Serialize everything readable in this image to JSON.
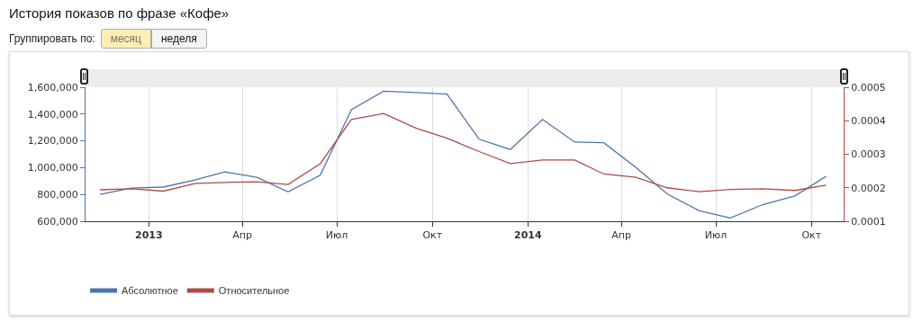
{
  "chart_data": {
    "type": "line",
    "title": "История показов по фразе «Кофе»",
    "annotations": [
      "Группировать по:",
      "месяц",
      "неделя"
    ],
    "x": [
      "2012-11-15",
      "2012-12-15",
      "2013-01-15",
      "2013-02-15",
      "2013-03-15",
      "2013-04-15",
      "2013-05-15",
      "2013-06-15",
      "2013-07-15",
      "2013-08-15",
      "2013-09-15",
      "2013-10-15",
      "2013-11-15",
      "2013-12-15",
      "2014-01-15",
      "2014-02-15",
      "2014-03-15",
      "2014-04-15",
      "2014-05-15",
      "2014-06-15",
      "2014-07-15",
      "2014-08-15",
      "2014-09-15",
      "2014-10-15"
    ],
    "series": [
      {
        "name": "Абсолютное",
        "color": "#4a76ad",
        "values": [
          800000,
          848000,
          855000,
          910000,
          968000,
          928000,
          820000,
          944000,
          1433000,
          1570000,
          1560000,
          1549000,
          1212000,
          1136000,
          1360000,
          1191000,
          1186000,
          1001000,
          805000,
          678000,
          625000,
          724000,
          789000,
          935000
        ]
      },
      {
        "name": "Относительное",
        "color": "#b04a48",
        "axis": "y2",
        "values": [
          0.000194,
          0.000197,
          0.00019,
          0.000213,
          0.000216,
          0.000218,
          0.00021,
          0.000272,
          0.000404,
          0.000422,
          0.000378,
          0.000348,
          0.000308,
          0.000272,
          0.000283,
          0.000283,
          0.000241,
          0.000231,
          0.0002,
          0.000188,
          0.000195,
          0.000197,
          0.000192,
          0.000208
        ]
      }
    ],
    "xlim": [
      "2012-11-01",
      "2014-11-01"
    ],
    "xticks": [
      {
        "value": "2013-01-01",
        "label": "2013"
      },
      {
        "value": "2013-04-01",
        "label": "Апр"
      },
      {
        "value": "2013-07-01",
        "label": "Июл"
      },
      {
        "value": "2013-10-01",
        "label": "Окт"
      },
      {
        "value": "2014-01-01",
        "label": "2014"
      },
      {
        "value": "2014-04-01",
        "label": "Апр"
      },
      {
        "value": "2014-07-01",
        "label": "Июл"
      },
      {
        "value": "2014-10-01",
        "label": "Окт"
      }
    ],
    "ylim": [
      600000,
      1600000
    ],
    "yticks": [
      {
        "value": 600000,
        "label": "600,000"
      },
      {
        "value": 800000,
        "label": "800,000"
      },
      {
        "value": 1000000,
        "label": "1,000,000"
      },
      {
        "value": 1200000,
        "label": "1,200,000"
      },
      {
        "value": 1400000,
        "label": "1,400,000"
      },
      {
        "value": 1600000,
        "label": "1,600,000"
      }
    ],
    "y2lim": [
      0.0001,
      0.0005
    ],
    "y2ticks": [
      0.0001,
      0.0002,
      0.0003,
      0.0004,
      0.0005
    ],
    "grid": "x",
    "legend": "bottom left",
    "marker": "none",
    "line_style": "solid"
  }
}
